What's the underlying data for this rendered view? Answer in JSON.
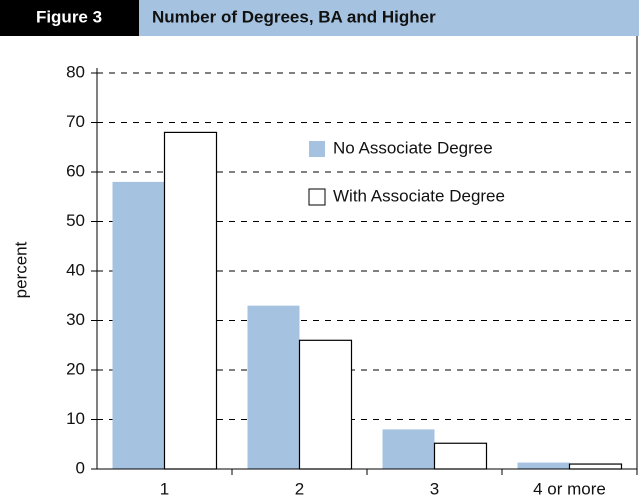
{
  "chart_data": {
    "type": "bar",
    "figure_label": "Figure 3",
    "title": "Number of Degrees, BA and Higher",
    "ylabel": "percent",
    "categories": [
      "1",
      "2",
      "3",
      "4 or more"
    ],
    "series": [
      {
        "name": "No Associate Degree",
        "color": "#a5c3e0",
        "values": [
          58,
          33,
          8,
          1.3
        ]
      },
      {
        "name": "With Associate Degree",
        "color": "#ffffff",
        "values": [
          68,
          26,
          5.2,
          1
        ]
      }
    ],
    "ylim": [
      0,
      80
    ],
    "yticks": [
      0,
      10,
      20,
      30,
      40,
      50,
      60,
      70,
      80
    ],
    "grid": true
  }
}
